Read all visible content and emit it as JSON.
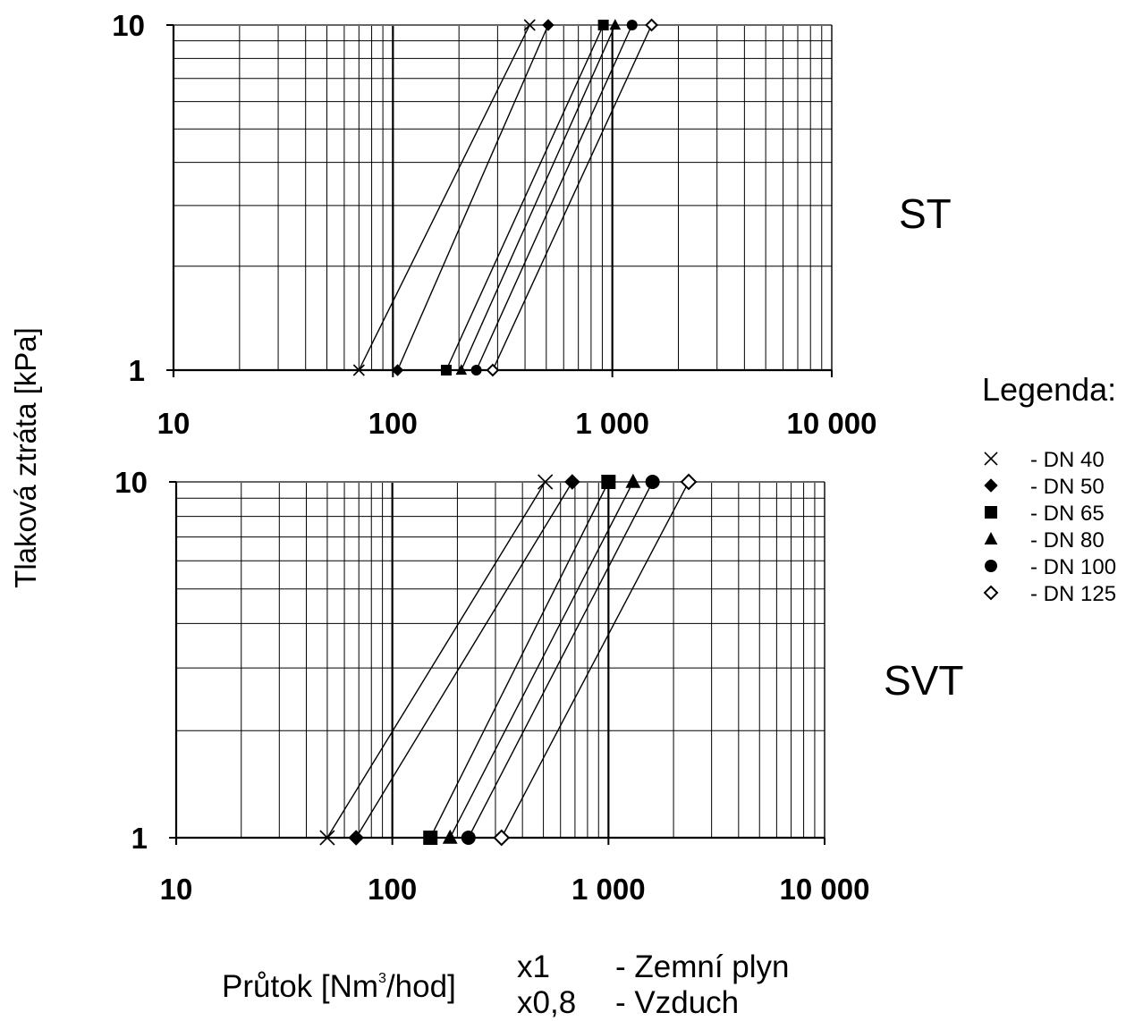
{
  "chart_data": [
    {
      "type": "line",
      "title": "ST",
      "xscale": "log",
      "yscale": "log",
      "xlim": [
        10,
        10000
      ],
      "ylim": [
        1,
        10
      ],
      "x_tick_labels": [
        "10",
        "100",
        "1 000",
        "10 000"
      ],
      "y_tick_labels": [
        "1",
        "10"
      ],
      "grid": true,
      "series": [
        {
          "name": "DN 40",
          "marker": "x",
          "x": [
            70,
            420
          ],
          "y": [
            1,
            10
          ]
        },
        {
          "name": "DN 50",
          "marker": "diamond",
          "x": [
            105,
            510
          ],
          "y": [
            1,
            10
          ]
        },
        {
          "name": "DN 65",
          "marker": "square",
          "x": [
            175,
            910
          ],
          "y": [
            1,
            10
          ]
        },
        {
          "name": "DN 80",
          "marker": "triangle",
          "x": [
            205,
            1030
          ],
          "y": [
            1,
            10
          ]
        },
        {
          "name": "DN 100",
          "marker": "circle",
          "x": [
            240,
            1230
          ],
          "y": [
            1,
            10
          ]
        },
        {
          "name": "DN 125",
          "marker": "diamond-open",
          "x": [
            285,
            1510
          ],
          "y": [
            1,
            10
          ]
        }
      ]
    },
    {
      "type": "line",
      "title": "SVT",
      "xscale": "log",
      "yscale": "log",
      "xlim": [
        10,
        10000
      ],
      "ylim": [
        1,
        10
      ],
      "x_tick_labels": [
        "10",
        "100",
        "1 000",
        "10 000"
      ],
      "y_tick_labels": [
        "1",
        "10"
      ],
      "grid": true,
      "series": [
        {
          "name": "DN 40",
          "marker": "x",
          "x": [
            50,
            510
          ],
          "y": [
            1,
            10
          ]
        },
        {
          "name": "DN 50",
          "marker": "diamond",
          "x": [
            68,
            680
          ],
          "y": [
            1,
            10
          ]
        },
        {
          "name": "DN 65",
          "marker": "square",
          "x": [
            150,
            1000
          ],
          "y": [
            1,
            10
          ]
        },
        {
          "name": "DN 80",
          "marker": "triangle",
          "x": [
            185,
            1300
          ],
          "y": [
            1,
            10
          ]
        },
        {
          "name": "DN 100",
          "marker": "circle",
          "x": [
            225,
            1600
          ],
          "y": [
            1,
            10
          ]
        },
        {
          "name": "DN 125",
          "marker": "diamond-open",
          "x": [
            320,
            2350
          ],
          "y": [
            1,
            10
          ]
        }
      ]
    }
  ],
  "ylabel": "Tlaková ztráta [kPa]",
  "xlabel": {
    "before": "Průtok [Nm",
    "sup": "3",
    "after": "/hod]"
  },
  "legend": {
    "title": "Legenda:",
    "placement": "right",
    "entries": [
      {
        "marker": "x",
        "label": "- DN 40"
      },
      {
        "marker": "diamond",
        "label": "- DN 50"
      },
      {
        "marker": "square",
        "label": "- DN 65"
      },
      {
        "marker": "triangle",
        "label": "- DN 80"
      },
      {
        "marker": "circle",
        "label": "- DN 100"
      },
      {
        "marker": "diamond-open",
        "label": "- DN 125"
      }
    ]
  },
  "factors": [
    {
      "factor": "x1",
      "label": "- Zemní plyn"
    },
    {
      "factor": "x0,8",
      "label": "- Vzduch"
    }
  ],
  "colors": {
    "ink": "#000000",
    "background": "#ffffff"
  }
}
